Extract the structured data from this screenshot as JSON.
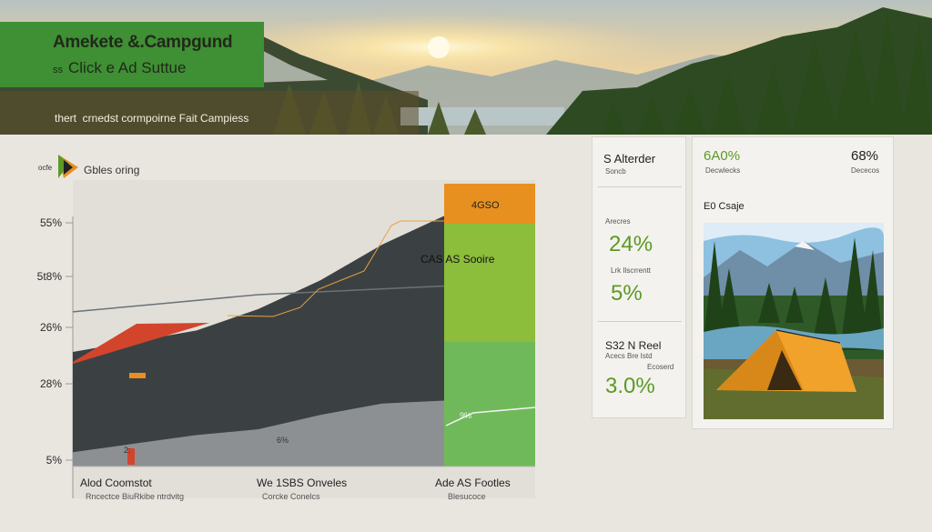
{
  "banner": {
    "title": "Amekete &.Campgund",
    "subtitle_prefix": "ss",
    "subtitle": "Click e Ad Suttue",
    "tagline": "thert ‍ crnedst cormpoirne Fait Campiess"
  },
  "colors": {
    "banner_green": "#3f8f34",
    "dark_area": "#3b4143",
    "red_area": "#d2452c",
    "orange_band": "#e8901f",
    "lime_band": "#8cbd3b",
    "light_green_band": "#6fb95a",
    "stat_green": "#5b9a24"
  },
  "chart_data": {
    "type": "area",
    "title": "Gbles oring",
    "logo_prefix": "ocfe",
    "y_ticks": [
      "5%",
      "28%",
      "26%",
      "5t8%",
      "55%"
    ],
    "x_labels": [
      {
        "label": "Alod Coomstot",
        "sub": "Rncectce BiuRkibe ntrdvitg"
      },
      {
        "label": "We 1SBS Onveles",
        "sub": "Corcke Conelcs"
      },
      {
        "label": "Ade AS Footles",
        "sub": "Blesucoce"
      }
    ],
    "annotations": [
      "CAS AS Sooire",
      "4GSO",
      "6%",
      "9%",
      "2:"
    ],
    "series": [
      {
        "name": "CAS AS Sooire",
        "values": [
          32,
          35,
          38,
          44,
          52,
          62,
          70
        ]
      },
      {
        "values": [
          36,
          38,
          40,
          41,
          42
        ]
      },
      {
        "values": [
          5,
          8,
          11,
          13,
          18,
          22,
          23
        ]
      }
    ]
  },
  "stats": {
    "heading": "S Alterder",
    "heading_sub": "Soncb",
    "label1": "Arecres",
    "value1": "24%",
    "label2": "Lrk Ilscrrentt",
    "value2": "5%",
    "heading2": "S32 N Reel",
    "heading2_sub1": "Acecs Bre Istd",
    "heading2_sub2": "Ecoserd",
    "value3": "3.0%"
  },
  "photo_card": {
    "pct_left": "6A0%",
    "pct_left_sub": "Decwlecks",
    "pct_right": "68%",
    "pct_right_sub": "Dececos",
    "caption": "E0 Csaje"
  }
}
